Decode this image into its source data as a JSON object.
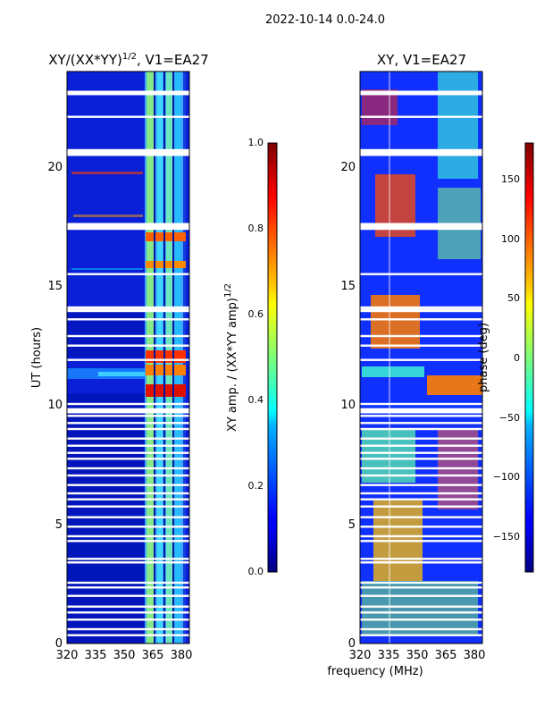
{
  "suptitle": "2022-10-14 0.0-24.0",
  "chart_data": [
    {
      "type": "heatmap",
      "title_main": "XY/(XX*YY)",
      "title_exponent": "1/2",
      "title_suffix": ", V1=EA27",
      "xlabel": "",
      "ylabel": "UT (hours)",
      "xlim": [
        320,
        384
      ],
      "ylim": [
        0,
        24
      ],
      "x_ticks": [
        "320",
        "335",
        "350",
        "365",
        "380"
      ],
      "y_ticks": [
        "0",
        "5",
        "10",
        "15",
        "20"
      ],
      "x_tick_values": [
        320,
        335,
        350,
        365,
        380
      ],
      "y_tick_values": [
        0,
        5,
        10,
        15,
        20
      ],
      "colorbar": {
        "label_main": "XY amp. / (XX*YY amp)",
        "label_exponent": "1/2",
        "range": [
          0.0,
          1.0
        ],
        "ticks": [
          "0.0",
          "0.2",
          "0.4",
          "0.6",
          "0.8",
          "1.0"
        ],
        "tick_values": [
          0.0,
          0.2,
          0.4,
          0.6,
          0.8,
          1.0
        ],
        "colormap": "jet"
      },
      "gap_hours": [
        0.35,
        0.6,
        1.0,
        1.3,
        1.55,
        2.0,
        2.35,
        2.55,
        3.4,
        3.55,
        4.3,
        4.5,
        4.9,
        5.3,
        5.75,
        6.05,
        6.3,
        6.65,
        7.05,
        7.35,
        7.75,
        8.0,
        8.3,
        8.6,
        9.0,
        9.25,
        9.55,
        9.7,
        10.05,
        11.9,
        12.5,
        12.9,
        13.6,
        13.95,
        14.1,
        15.5,
        17.4,
        17.6,
        20.5,
        20.7,
        22.1,
        23.05,
        23.15
      ]
    },
    {
      "type": "heatmap",
      "title_main": "XY, V1=EA27",
      "xlabel": "frequency (MHz)",
      "ylabel": "",
      "xlim": [
        320,
        384
      ],
      "ylim": [
        0,
        24
      ],
      "x_ticks": [
        "320",
        "335",
        "350",
        "365",
        "380"
      ],
      "y_ticks": [
        "0",
        "5",
        "10",
        "15",
        "20"
      ],
      "x_tick_values": [
        320,
        335,
        350,
        365,
        380
      ],
      "y_tick_values": [
        0,
        5,
        10,
        15,
        20
      ],
      "colorbar": {
        "label_main": "phase (deg)",
        "range": [
          -180,
          180
        ],
        "ticks": [
          "−150",
          "−100",
          "−50",
          "0",
          "50",
          "100",
          "150"
        ],
        "tick_values": [
          -150,
          -100,
          -50,
          0,
          50,
          100,
          150
        ],
        "colormap": "jet"
      },
      "gap_hours": [
        0.35,
        0.6,
        1.0,
        1.3,
        1.55,
        2.0,
        2.35,
        2.55,
        3.4,
        3.55,
        4.3,
        4.5,
        4.9,
        5.3,
        5.75,
        6.05,
        6.3,
        6.65,
        7.05,
        7.35,
        7.75,
        8.0,
        8.3,
        8.6,
        9.0,
        9.25,
        9.55,
        9.7,
        10.05,
        11.9,
        12.5,
        12.9,
        13.6,
        13.95,
        14.1,
        15.5,
        17.4,
        17.6,
        20.5,
        20.7,
        22.1,
        23.05,
        23.15
      ]
    }
  ]
}
